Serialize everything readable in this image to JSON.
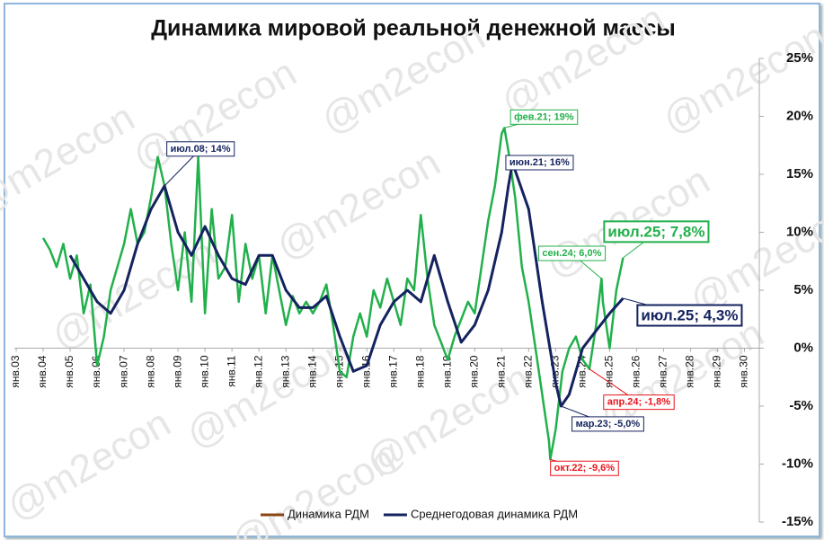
{
  "chart_data": {
    "type": "line",
    "title": "Динамика мировой реальной денежной массы",
    "watermark": "@m2econ",
    "xlim": [
      2002.6,
      2030.55
    ],
    "xticks": [
      {
        "value": 2003,
        "label": "янв.03"
      },
      {
        "value": 2004,
        "label": "янв.04"
      },
      {
        "value": 2005,
        "label": "янв.05"
      },
      {
        "value": 2006,
        "label": "янв.06"
      },
      {
        "value": 2007,
        "label": "янв.07"
      },
      {
        "value": 2008,
        "label": "янв.08"
      },
      {
        "value": 2009,
        "label": "янв.09"
      },
      {
        "value": 2010,
        "label": "янв.10"
      },
      {
        "value": 2011,
        "label": "янв.11"
      },
      {
        "value": 2012,
        "label": "янв.12"
      },
      {
        "value": 2013,
        "label": "янв.13"
      },
      {
        "value": 2014,
        "label": "янв.14"
      },
      {
        "value": 2015,
        "label": "янв.15"
      },
      {
        "value": 2016,
        "label": "янв.16"
      },
      {
        "value": 2017,
        "label": "янв.17"
      },
      {
        "value": 2018,
        "label": "янв.18"
      },
      {
        "value": 2019,
        "label": "янв.19"
      },
      {
        "value": 2020,
        "label": "янв.20"
      },
      {
        "value": 2021,
        "label": "янв.21"
      },
      {
        "value": 2022,
        "label": "янв.22"
      },
      {
        "value": 2023,
        "label": "янв.23"
      },
      {
        "value": 2024,
        "label": "янв.24"
      },
      {
        "value": 2025,
        "label": "янв.25"
      },
      {
        "value": 2026,
        "label": "янв.26"
      },
      {
        "value": 2027,
        "label": "янв.27"
      },
      {
        "value": 2028,
        "label": "янв.28"
      },
      {
        "value": 2029,
        "label": "янв.29"
      },
      {
        "value": 2030,
        "label": "янв.30"
      }
    ],
    "ylim": [
      -15,
      25
    ],
    "yticks": [
      {
        "value": -15,
        "label": "-15%"
      },
      {
        "value": -10,
        "label": "-10%"
      },
      {
        "value": -5,
        "label": "-5%"
      },
      {
        "value": 0,
        "label": "0%"
      },
      {
        "value": 5,
        "label": "5%"
      },
      {
        "value": 10,
        "label": "10%"
      },
      {
        "value": 15,
        "label": "15%"
      },
      {
        "value": 20,
        "label": "20%"
      },
      {
        "value": 25,
        "label": "25%"
      }
    ],
    "series": [
      {
        "name": "Динамика РДМ",
        "color": "#22b04b",
        "legend_color": "#8b4513",
        "x": [
          2004,
          2004.25,
          2004.5,
          2004.75,
          2005,
          2005.25,
          2005.5,
          2005.75,
          2006,
          2006.25,
          2006.5,
          2006.75,
          2007,
          2007.25,
          2007.5,
          2007.75,
          2008,
          2008.25,
          2008.5,
          2008.75,
          2009,
          2009.25,
          2009.5,
          2009.75,
          2010,
          2010.25,
          2010.5,
          2010.75,
          2011,
          2011.25,
          2011.5,
          2011.75,
          2012,
          2012.25,
          2012.5,
          2012.75,
          2013,
          2013.25,
          2013.5,
          2013.75,
          2014,
          2014.25,
          2014.5,
          2014.75,
          2015,
          2015.25,
          2015.5,
          2015.75,
          2016,
          2016.25,
          2016.5,
          2016.75,
          2017,
          2017.25,
          2017.5,
          2017.75,
          2018,
          2018.25,
          2018.5,
          2018.75,
          2019,
          2019.25,
          2019.5,
          2019.75,
          2020,
          2020.25,
          2020.5,
          2020.75,
          2021,
          2021.1,
          2021.25,
          2021.5,
          2021.75,
          2022,
          2022.25,
          2022.5,
          2022.75,
          2022.8,
          2023,
          2023.25,
          2023.5,
          2023.75,
          2024,
          2024.25,
          2024.5,
          2024.7,
          2024.75,
          2025,
          2025.25,
          2025.5
        ],
        "values": [
          9.5,
          8.5,
          7,
          9,
          6,
          8,
          3,
          5.5,
          -1.5,
          1,
          5,
          7,
          9,
          12,
          9,
          10,
          13,
          16.5,
          14,
          9,
          5,
          10,
          4,
          16.5,
          3,
          12,
          6,
          7,
          11.5,
          4,
          9,
          6,
          8,
          3,
          8,
          5,
          2,
          4.5,
          3,
          4,
          3,
          4,
          5.5,
          2,
          -2,
          -2.5,
          1,
          3,
          1,
          5,
          3.5,
          6,
          4,
          2,
          6,
          5,
          11.5,
          6,
          2,
          0.5,
          -1,
          1,
          2.5,
          4,
          3,
          7,
          11,
          14,
          18.5,
          19,
          17,
          13,
          7,
          4,
          0,
          -4,
          -8,
          -9.6,
          -7,
          -2,
          0,
          1,
          -1,
          -1.8,
          2,
          6,
          4,
          0,
          5,
          7.8
        ]
      },
      {
        "name": "Среднегодовая динамика РДМ",
        "color": "#14235f",
        "x": [
          2005,
          2005.5,
          2006,
          2006.5,
          2007,
          2007.5,
          2008,
          2008.5,
          2009,
          2009.5,
          2010,
          2010.5,
          2011,
          2011.5,
          2012,
          2012.5,
          2013,
          2013.5,
          2014,
          2014.5,
          2015,
          2015.5,
          2016,
          2016.5,
          2017,
          2017.5,
          2018,
          2018.5,
          2019,
          2019.5,
          2020,
          2020.5,
          2021,
          2021.25,
          2021.4,
          2022,
          2022.5,
          2023,
          2023.2,
          2023.5,
          2024,
          2024.5,
          2025,
          2025.5
        ],
        "values": [
          8,
          6,
          4,
          3,
          5,
          9,
          12,
          14,
          10,
          8,
          10.5,
          8,
          6,
          5.5,
          8,
          8,
          5,
          3.5,
          3.5,
          4.5,
          1,
          -2,
          -1.5,
          2,
          4,
          5,
          4,
          8,
          4,
          0.5,
          2,
          5,
          10,
          14,
          16,
          12,
          4,
          -3,
          -5,
          -4,
          0,
          1.5,
          3,
          4.3
        ]
      }
    ],
    "annotations": [
      {
        "text": "июл.08; 14%",
        "x": 2008.5,
        "y": 14,
        "color": "#14235f"
      },
      {
        "text": "фев.21; 19%",
        "x": 2021.1,
        "y": 19,
        "color": "#22b04b"
      },
      {
        "text": "июн.21; 16%",
        "x": 2021.4,
        "y": 16,
        "color": "#14235f"
      },
      {
        "text": "сен.24; 6,0%",
        "x": 2024.7,
        "y": 6,
        "color": "#22b04b"
      },
      {
        "text": "июл.25; 7,8%",
        "x": 2025.5,
        "y": 7.8,
        "color": "#22b04b"
      },
      {
        "text": "июл.25; 4,3%",
        "x": 2025.5,
        "y": 4.3,
        "color": "#14235f"
      },
      {
        "text": "окт.22; -9,6%",
        "x": 2022.8,
        "y": -9.6,
        "color": "#e8141c"
      },
      {
        "text": "апр.24; -1,8%",
        "x": 2024.25,
        "y": -1.8,
        "color": "#e8141c"
      },
      {
        "text": "мар.23; -5,0%",
        "x": 2023.2,
        "y": -5,
        "color": "#14235f"
      }
    ]
  }
}
